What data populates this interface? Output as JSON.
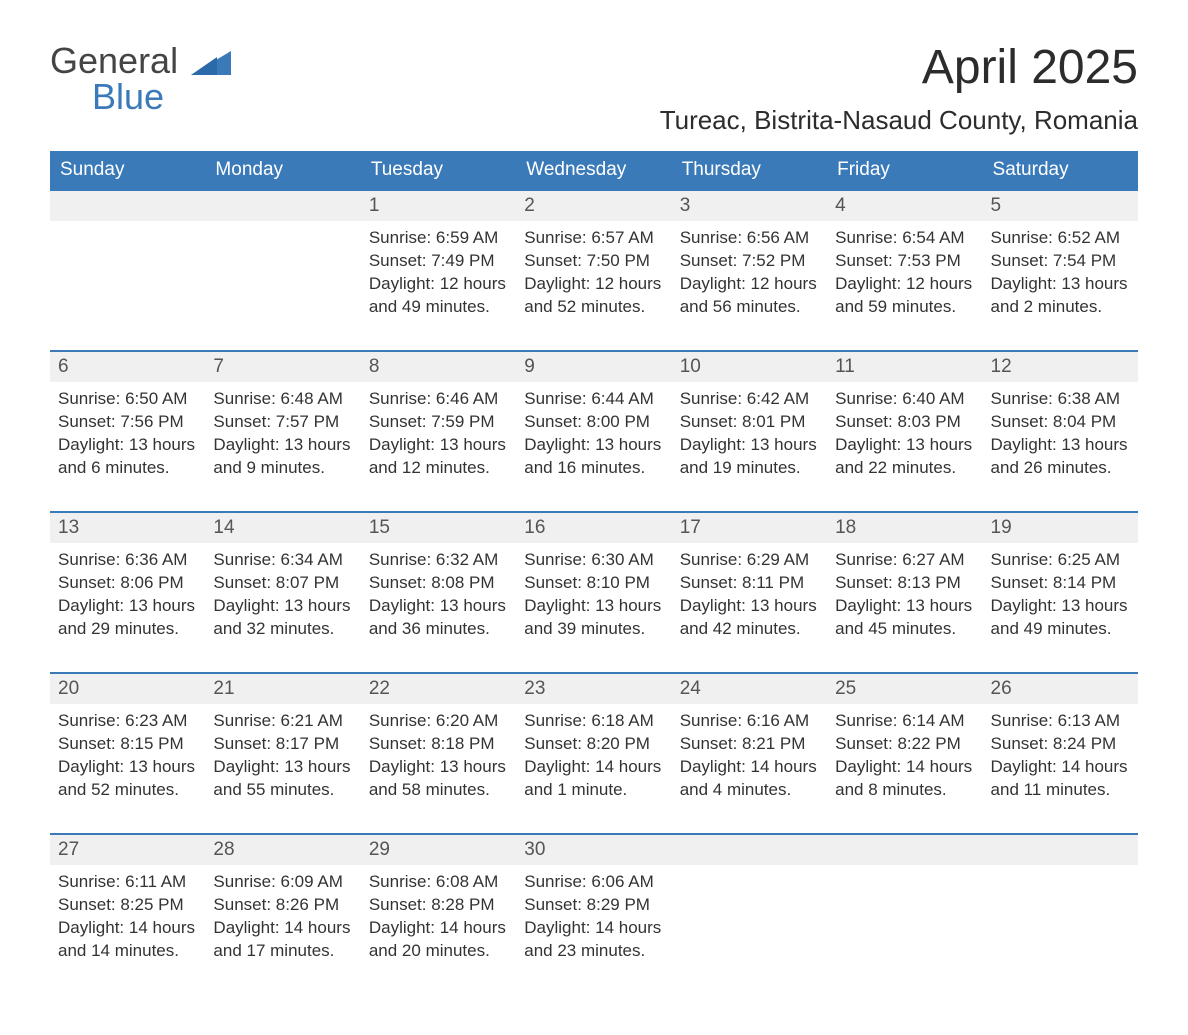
{
  "logo": {
    "text1": "General",
    "text2": "Blue"
  },
  "title": "April 2025",
  "location": "Tureac, Bistrita-Nasaud County, Romania",
  "header_bg": "#3a7ab8",
  "header_fg": "#ffffff",
  "daynum_bg": "#f0f0f0",
  "row_border": "#3a7ab8",
  "weekdays": [
    "Sunday",
    "Monday",
    "Tuesday",
    "Wednesday",
    "Thursday",
    "Friday",
    "Saturday"
  ],
  "weeks": [
    [
      null,
      null,
      {
        "n": "1",
        "sr": "Sunrise: 6:59 AM",
        "ss": "Sunset: 7:49 PM",
        "dl": "Daylight: 12 hours and 49 minutes."
      },
      {
        "n": "2",
        "sr": "Sunrise: 6:57 AM",
        "ss": "Sunset: 7:50 PM",
        "dl": "Daylight: 12 hours and 52 minutes."
      },
      {
        "n": "3",
        "sr": "Sunrise: 6:56 AM",
        "ss": "Sunset: 7:52 PM",
        "dl": "Daylight: 12 hours and 56 minutes."
      },
      {
        "n": "4",
        "sr": "Sunrise: 6:54 AM",
        "ss": "Sunset: 7:53 PM",
        "dl": "Daylight: 12 hours and 59 minutes."
      },
      {
        "n": "5",
        "sr": "Sunrise: 6:52 AM",
        "ss": "Sunset: 7:54 PM",
        "dl": "Daylight: 13 hours and 2 minutes."
      }
    ],
    [
      {
        "n": "6",
        "sr": "Sunrise: 6:50 AM",
        "ss": "Sunset: 7:56 PM",
        "dl": "Daylight: 13 hours and 6 minutes."
      },
      {
        "n": "7",
        "sr": "Sunrise: 6:48 AM",
        "ss": "Sunset: 7:57 PM",
        "dl": "Daylight: 13 hours and 9 minutes."
      },
      {
        "n": "8",
        "sr": "Sunrise: 6:46 AM",
        "ss": "Sunset: 7:59 PM",
        "dl": "Daylight: 13 hours and 12 minutes."
      },
      {
        "n": "9",
        "sr": "Sunrise: 6:44 AM",
        "ss": "Sunset: 8:00 PM",
        "dl": "Daylight: 13 hours and 16 minutes."
      },
      {
        "n": "10",
        "sr": "Sunrise: 6:42 AM",
        "ss": "Sunset: 8:01 PM",
        "dl": "Daylight: 13 hours and 19 minutes."
      },
      {
        "n": "11",
        "sr": "Sunrise: 6:40 AM",
        "ss": "Sunset: 8:03 PM",
        "dl": "Daylight: 13 hours and 22 minutes."
      },
      {
        "n": "12",
        "sr": "Sunrise: 6:38 AM",
        "ss": "Sunset: 8:04 PM",
        "dl": "Daylight: 13 hours and 26 minutes."
      }
    ],
    [
      {
        "n": "13",
        "sr": "Sunrise: 6:36 AM",
        "ss": "Sunset: 8:06 PM",
        "dl": "Daylight: 13 hours and 29 minutes."
      },
      {
        "n": "14",
        "sr": "Sunrise: 6:34 AM",
        "ss": "Sunset: 8:07 PM",
        "dl": "Daylight: 13 hours and 32 minutes."
      },
      {
        "n": "15",
        "sr": "Sunrise: 6:32 AM",
        "ss": "Sunset: 8:08 PM",
        "dl": "Daylight: 13 hours and 36 minutes."
      },
      {
        "n": "16",
        "sr": "Sunrise: 6:30 AM",
        "ss": "Sunset: 8:10 PM",
        "dl": "Daylight: 13 hours and 39 minutes."
      },
      {
        "n": "17",
        "sr": "Sunrise: 6:29 AM",
        "ss": "Sunset: 8:11 PM",
        "dl": "Daylight: 13 hours and 42 minutes."
      },
      {
        "n": "18",
        "sr": "Sunrise: 6:27 AM",
        "ss": "Sunset: 8:13 PM",
        "dl": "Daylight: 13 hours and 45 minutes."
      },
      {
        "n": "19",
        "sr": "Sunrise: 6:25 AM",
        "ss": "Sunset: 8:14 PM",
        "dl": "Daylight: 13 hours and 49 minutes."
      }
    ],
    [
      {
        "n": "20",
        "sr": "Sunrise: 6:23 AM",
        "ss": "Sunset: 8:15 PM",
        "dl": "Daylight: 13 hours and 52 minutes."
      },
      {
        "n": "21",
        "sr": "Sunrise: 6:21 AM",
        "ss": "Sunset: 8:17 PM",
        "dl": "Daylight: 13 hours and 55 minutes."
      },
      {
        "n": "22",
        "sr": "Sunrise: 6:20 AM",
        "ss": "Sunset: 8:18 PM",
        "dl": "Daylight: 13 hours and 58 minutes."
      },
      {
        "n": "23",
        "sr": "Sunrise: 6:18 AM",
        "ss": "Sunset: 8:20 PM",
        "dl": "Daylight: 14 hours and 1 minute."
      },
      {
        "n": "24",
        "sr": "Sunrise: 6:16 AM",
        "ss": "Sunset: 8:21 PM",
        "dl": "Daylight: 14 hours and 4 minutes."
      },
      {
        "n": "25",
        "sr": "Sunrise: 6:14 AM",
        "ss": "Sunset: 8:22 PM",
        "dl": "Daylight: 14 hours and 8 minutes."
      },
      {
        "n": "26",
        "sr": "Sunrise: 6:13 AM",
        "ss": "Sunset: 8:24 PM",
        "dl": "Daylight: 14 hours and 11 minutes."
      }
    ],
    [
      {
        "n": "27",
        "sr": "Sunrise: 6:11 AM",
        "ss": "Sunset: 8:25 PM",
        "dl": "Daylight: 14 hours and 14 minutes."
      },
      {
        "n": "28",
        "sr": "Sunrise: 6:09 AM",
        "ss": "Sunset: 8:26 PM",
        "dl": "Daylight: 14 hours and 17 minutes."
      },
      {
        "n": "29",
        "sr": "Sunrise: 6:08 AM",
        "ss": "Sunset: 8:28 PM",
        "dl": "Daylight: 14 hours and 20 minutes."
      },
      {
        "n": "30",
        "sr": "Sunrise: 6:06 AM",
        "ss": "Sunset: 8:29 PM",
        "dl": "Daylight: 14 hours and 23 minutes."
      },
      null,
      null,
      null
    ]
  ]
}
